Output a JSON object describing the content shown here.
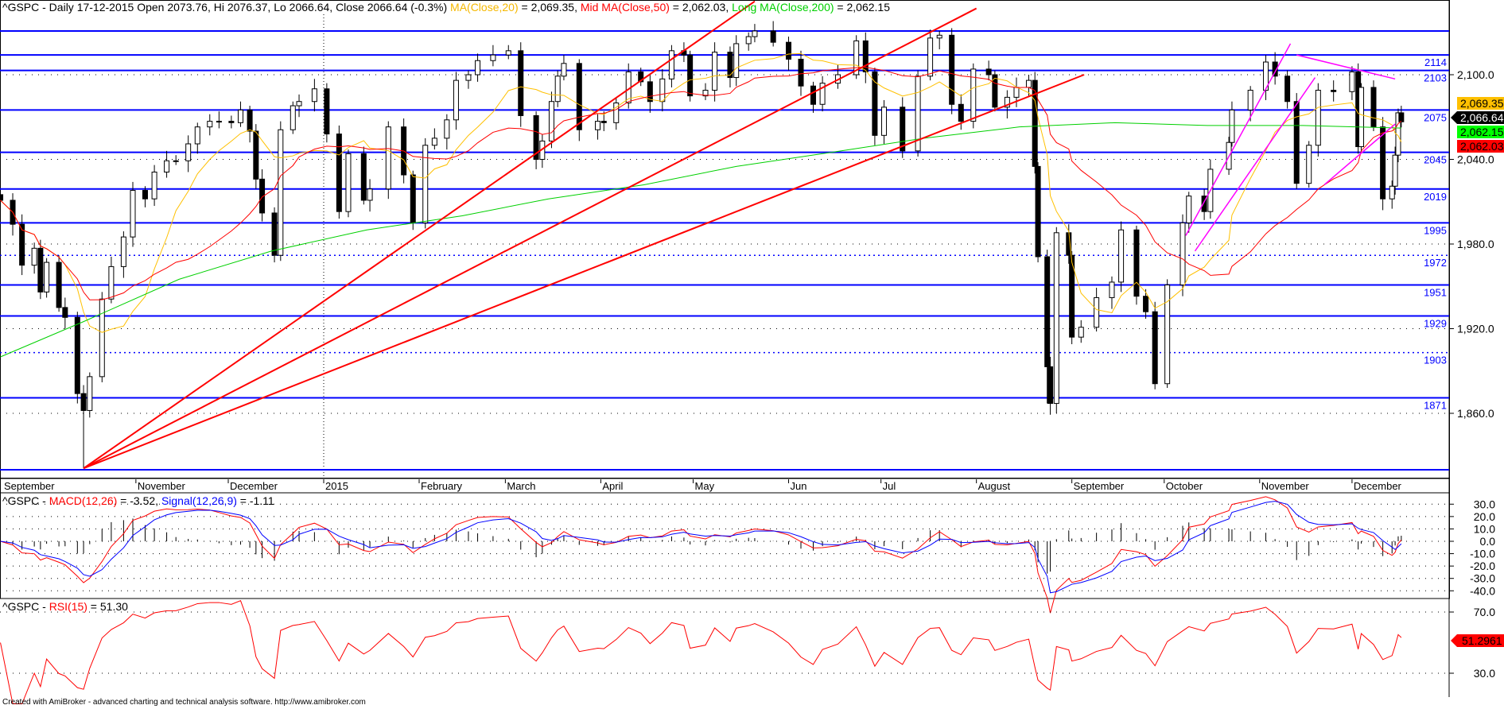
{
  "header": {
    "symbol_info": "^GSPC - Daily 17-12-2015 Open 2073.76, Hi 2076.37, Lo 2066.64, Close 2066.64 (-0.3%)",
    "ma20_label": "MA(Close,20)",
    "ma20_value": " = 2,069.35,",
    "ma50_label": "Mid MA(Close,50)",
    "ma50_value": " = 2,062.03,",
    "ma200_label": "Long MA(Close,200)",
    "ma200_value": " = 2,062.15"
  },
  "macd_header": {
    "prefix": "^GSPC - ",
    "macd_label": "MACD(12,26)",
    "macd_value": " = -3.52, ",
    "signal_label": "Signal(12,26,9)",
    "signal_value": " = -1.11"
  },
  "rsi_header": {
    "prefix": "^GSPC - ",
    "rsi_label": "RSI(15)",
    "rsi_value": " = 51.30"
  },
  "footer": "Created with AmiBroker - advanced charting and technical analysis software. http://www.amibroker.com",
  "chart_data": [
    {
      "type": "candlestick",
      "title": "^GSPC - Daily",
      "x_range": [
        "2014-09-18",
        "2015-12-17"
      ],
      "ylim": [
        1815,
        2160
      ],
      "y_ticks": [
        "2,100.0",
        "2,040.0",
        "1,980.0",
        "1,920.0",
        "1,860.0"
      ],
      "y_tick_values": [
        2100,
        2040,
        1980,
        1920,
        1860
      ],
      "month_labels": [
        {
          "d": "2014-09-01",
          "t": "September"
        },
        {
          "d": "2014-11-01",
          "t": "November"
        },
        {
          "d": "2014-12-01",
          "t": "December"
        },
        {
          "d": "2015-01-01",
          "t": "2015"
        },
        {
          "d": "2015-02-01",
          "t": "February"
        },
        {
          "d": "2015-03-01",
          "t": "March"
        },
        {
          "d": "2015-04-01",
          "t": "April"
        },
        {
          "d": "2015-05-01",
          "t": "May"
        },
        {
          "d": "2015-06-01",
          "t": "Jun"
        },
        {
          "d": "2015-07-01",
          "t": "Jul"
        },
        {
          "d": "2015-08-01",
          "t": "August"
        },
        {
          "d": "2015-09-01",
          "t": "September"
        },
        {
          "d": "2015-10-01",
          "t": "October"
        },
        {
          "d": "2015-11-01",
          "t": "November"
        },
        {
          "d": "2015-12-01",
          "t": "December"
        }
      ],
      "closes": [
        {
          "d": "2014-09-18",
          "c": 2011
        },
        {
          "d": "2014-09-22",
          "c": 1994
        },
        {
          "d": "2014-09-25",
          "c": 1965
        },
        {
          "d": "2014-09-29",
          "c": 1977
        },
        {
          "d": "2014-10-01",
          "c": 1946
        },
        {
          "d": "2014-10-03",
          "c": 1967
        },
        {
          "d": "2014-10-07",
          "c": 1935
        },
        {
          "d": "2014-10-09",
          "c": 1928
        },
        {
          "d": "2014-10-13",
          "c": 1874
        },
        {
          "d": "2014-10-15",
          "c": 1862,
          "l": 1821
        },
        {
          "d": "2014-10-17",
          "c": 1886
        },
        {
          "d": "2014-10-21",
          "c": 1941
        },
        {
          "d": "2014-10-24",
          "c": 1964
        },
        {
          "d": "2014-10-28",
          "c": 1985
        },
        {
          "d": "2014-10-31",
          "c": 2018
        },
        {
          "d": "2014-11-04",
          "c": 2012
        },
        {
          "d": "2014-11-07",
          "c": 2031
        },
        {
          "d": "2014-11-11",
          "c": 2039
        },
        {
          "d": "2014-11-14",
          "c": 2039
        },
        {
          "d": "2014-11-18",
          "c": 2051
        },
        {
          "d": "2014-11-21",
          "c": 2063
        },
        {
          "d": "2014-11-25",
          "c": 2067
        },
        {
          "d": "2014-11-28",
          "c": 2067
        },
        {
          "d": "2014-12-02",
          "c": 2066
        },
        {
          "d": "2014-12-05",
          "c": 2075
        },
        {
          "d": "2014-12-08",
          "c": 2060
        },
        {
          "d": "2014-12-10",
          "c": 2026
        },
        {
          "d": "2014-12-12",
          "c": 2002
        },
        {
          "d": "2014-12-16",
          "c": 1972
        },
        {
          "d": "2014-12-18",
          "c": 2061
        },
        {
          "d": "2014-12-22",
          "c": 2078
        },
        {
          "d": "2014-12-24",
          "c": 2081
        },
        {
          "d": "2014-12-29",
          "c": 2090
        },
        {
          "d": "2015-01-02",
          "c": 2058
        },
        {
          "d": "2015-01-06",
          "c": 2003
        },
        {
          "d": "2015-01-09",
          "c": 2044
        },
        {
          "d": "2015-01-14",
          "c": 2011
        },
        {
          "d": "2015-01-16",
          "c": 2019
        },
        {
          "d": "2015-01-22",
          "c": 2063
        },
        {
          "d": "2015-01-27",
          "c": 2029
        },
        {
          "d": "2015-01-30",
          "c": 1995
        },
        {
          "d": "2015-02-03",
          "c": 2050
        },
        {
          "d": "2015-02-06",
          "c": 2055
        },
        {
          "d": "2015-02-10",
          "c": 2068
        },
        {
          "d": "2015-02-13",
          "c": 2096
        },
        {
          "d": "2015-02-17",
          "c": 2100
        },
        {
          "d": "2015-02-20",
          "c": 2110
        },
        {
          "d": "2015-02-25",
          "c": 2114
        },
        {
          "d": "2015-03-02",
          "c": 2117
        },
        {
          "d": "2015-03-06",
          "c": 2071
        },
        {
          "d": "2015-03-11",
          "c": 2040
        },
        {
          "d": "2015-03-13",
          "c": 2053
        },
        {
          "d": "2015-03-16",
          "c": 2081
        },
        {
          "d": "2015-03-18",
          "c": 2099
        },
        {
          "d": "2015-03-20",
          "c": 2108
        },
        {
          "d": "2015-03-25",
          "c": 2061
        },
        {
          "d": "2015-03-31",
          "c": 2067
        },
        {
          "d": "2015-04-02",
          "c": 2066
        },
        {
          "d": "2015-04-06",
          "c": 2080
        },
        {
          "d": "2015-04-10",
          "c": 2102
        },
        {
          "d": "2015-04-14",
          "c": 2095
        },
        {
          "d": "2015-04-17",
          "c": 2081
        },
        {
          "d": "2015-04-21",
          "c": 2097
        },
        {
          "d": "2015-04-24",
          "c": 2117
        },
        {
          "d": "2015-04-28",
          "c": 2114
        },
        {
          "d": "2015-04-30",
          "c": 2085
        },
        {
          "d": "2015-05-05",
          "c": 2089
        },
        {
          "d": "2015-05-08",
          "c": 2116
        },
        {
          "d": "2015-05-13",
          "c": 2098
        },
        {
          "d": "2015-05-15",
          "c": 2122
        },
        {
          "d": "2015-05-19",
          "c": 2127
        },
        {
          "d": "2015-05-21",
          "c": 2131
        },
        {
          "d": "2015-05-27",
          "c": 2123
        },
        {
          "d": "2015-06-01",
          "c": 2111
        },
        {
          "d": "2015-06-05",
          "c": 2092
        },
        {
          "d": "2015-06-09",
          "c": 2079
        },
        {
          "d": "2015-06-12",
          "c": 2094
        },
        {
          "d": "2015-06-17",
          "c": 2100
        },
        {
          "d": "2015-06-23",
          "c": 2124
        },
        {
          "d": "2015-06-26",
          "c": 2102
        },
        {
          "d": "2015-06-29",
          "c": 2057
        },
        {
          "d": "2015-07-02",
          "c": 2077
        },
        {
          "d": "2015-07-08",
          "c": 2046
        },
        {
          "d": "2015-07-13",
          "c": 2099
        },
        {
          "d": "2015-07-17",
          "c": 2126
        },
        {
          "d": "2015-07-20",
          "c": 2128
        },
        {
          "d": "2015-07-24",
          "c": 2079
        },
        {
          "d": "2015-07-27",
          "c": 2067
        },
        {
          "d": "2015-07-31",
          "c": 2104
        },
        {
          "d": "2015-08-05",
          "c": 2100
        },
        {
          "d": "2015-08-07",
          "c": 2077
        },
        {
          "d": "2015-08-11",
          "c": 2084
        },
        {
          "d": "2015-08-14",
          "c": 2091
        },
        {
          "d": "2015-08-18",
          "c": 2096
        },
        {
          "d": "2015-08-20",
          "c": 2035
        },
        {
          "d": "2015-08-21",
          "c": 1971
        },
        {
          "d": "2015-08-24",
          "c": 1893,
          "l": 1867
        },
        {
          "d": "2015-08-25",
          "c": 1867
        },
        {
          "d": "2015-08-27",
          "c": 1988
        },
        {
          "d": "2015-08-31",
          "c": 1972
        },
        {
          "d": "2015-09-01",
          "c": 1914
        },
        {
          "d": "2015-09-04",
          "c": 1921
        },
        {
          "d": "2015-09-09",
          "c": 1942
        },
        {
          "d": "2015-09-14",
          "c": 1953
        },
        {
          "d": "2015-09-17",
          "c": 1990
        },
        {
          "d": "2015-09-22",
          "c": 1943
        },
        {
          "d": "2015-09-25",
          "c": 1932
        },
        {
          "d": "2015-09-28",
          "c": 1881
        },
        {
          "d": "2015-10-02",
          "c": 1951
        },
        {
          "d": "2015-10-07",
          "c": 1995
        },
        {
          "d": "2015-10-09",
          "c": 2014
        },
        {
          "d": "2015-10-14",
          "c": 2003
        },
        {
          "d": "2015-10-16",
          "c": 2033
        },
        {
          "d": "2015-10-22",
          "c": 2052
        },
        {
          "d": "2015-10-23",
          "c": 2075
        },
        {
          "d": "2015-10-29",
          "c": 2089
        },
        {
          "d": "2015-11-03",
          "c": 2109
        },
        {
          "d": "2015-11-06",
          "c": 2099
        },
        {
          "d": "2015-11-10",
          "c": 2081
        },
        {
          "d": "2015-11-13",
          "c": 2023
        },
        {
          "d": "2015-11-17",
          "c": 2050
        },
        {
          "d": "2015-11-20",
          "c": 2089
        },
        {
          "d": "2015-11-25",
          "c": 2088
        },
        {
          "d": "2015-12-01",
          "c": 2102
        },
        {
          "d": "2015-12-03",
          "c": 2049
        },
        {
          "d": "2015-12-04",
          "c": 2091
        },
        {
          "d": "2015-12-08",
          "c": 2063
        },
        {
          "d": "2015-12-11",
          "c": 2012
        },
        {
          "d": "2015-12-14",
          "c": 2021
        },
        {
          "d": "2015-12-15",
          "c": 2043
        },
        {
          "d": "2015-12-16",
          "c": 2073
        },
        {
          "d": "2015-12-17",
          "c": 2066.64
        }
      ],
      "long_ma200": [
        {
          "d": "2014-09-18",
          "v": 1900
        },
        {
          "d": "2014-10-15",
          "v": 1925
        },
        {
          "d": "2014-11-15",
          "v": 1955
        },
        {
          "d": "2014-12-15",
          "v": 1975
        },
        {
          "d": "2015-01-15",
          "v": 1990
        },
        {
          "d": "2015-02-15",
          "v": 2000
        },
        {
          "d": "2015-03-15",
          "v": 2012
        },
        {
          "d": "2015-04-15",
          "v": 2022
        },
        {
          "d": "2015-05-15",
          "v": 2035
        },
        {
          "d": "2015-06-15",
          "v": 2045
        },
        {
          "d": "2015-07-15",
          "v": 2055
        },
        {
          "d": "2015-08-15",
          "v": 2063
        },
        {
          "d": "2015-09-15",
          "v": 2066
        },
        {
          "d": "2015-10-15",
          "v": 2064
        },
        {
          "d": "2015-11-15",
          "v": 2064
        },
        {
          "d": "2015-12-17",
          "v": 2062.15
        }
      ],
      "levels": [
        {
          "v": 2131,
          "label": "",
          "style": "solid"
        },
        {
          "v": 2114,
          "label": "2114",
          "style": "solid"
        },
        {
          "v": 2103,
          "label": "2103",
          "style": "solid"
        },
        {
          "v": 2075,
          "label": "2075",
          "style": "solid"
        },
        {
          "v": 2045,
          "label": "2045",
          "style": "solid"
        },
        {
          "v": 2019,
          "label": "2019",
          "style": "solid"
        },
        {
          "v": 1995,
          "label": "1995",
          "style": "solid"
        },
        {
          "v": 1972,
          "label": "1972",
          "style": "dotted"
        },
        {
          "v": 1951,
          "label": "1951",
          "style": "solid"
        },
        {
          "v": 1929,
          "label": "1929",
          "style": "solid"
        },
        {
          "v": 1903,
          "label": "1903",
          "style": "dotted"
        },
        {
          "v": 1871,
          "label": "1871",
          "style": "solid"
        },
        {
          "v": 1820,
          "label": "",
          "style": "solid"
        }
      ],
      "trendlines_red": [
        [
          {
            "d": "2014-10-15",
            "v": 1821
          },
          {
            "d": "2015-05-21",
            "v": 2152
          }
        ],
        [
          {
            "d": "2014-10-15",
            "v": 1821
          },
          {
            "d": "2015-08-01",
            "v": 2147
          }
        ],
        [
          {
            "d": "2014-10-15",
            "v": 1821
          },
          {
            "d": "2015-09-05",
            "v": 2100
          }
        ]
      ],
      "trendlines_magenta": [
        [
          {
            "d": "2015-10-08",
            "v": 1986
          },
          {
            "d": "2015-11-11",
            "v": 2122
          }
        ],
        [
          {
            "d": "2015-10-11",
            "v": 1975
          },
          {
            "d": "2015-11-19",
            "v": 2098
          }
        ],
        [
          {
            "d": "2015-11-13",
            "v": 2114
          },
          {
            "d": "2015-12-15",
            "v": 2097
          }
        ],
        [
          {
            "d": "2015-11-22",
            "v": 2022
          },
          {
            "d": "2015-12-15",
            "v": 2065
          }
        ]
      ],
      "value_tags": [
        {
          "t": "2,069.35",
          "bg": "#ffc000",
          "fg": "#000"
        },
        {
          "t": "2,066.64",
          "bg": "#000000",
          "fg": "#fff"
        },
        {
          "t": "2,062.15",
          "bg": "#00ff00",
          "fg": "#000"
        },
        {
          "t": "2,062.03",
          "bg": "#ff0000",
          "fg": "#000"
        }
      ],
      "tag_values": [
        2069.35,
        2066.64,
        2062.15,
        2062.03
      ],
      "colors": {
        "ma20": "#ffc000",
        "ma50": "#ff0000",
        "ma200": "#00d000",
        "levels": "#0000ff",
        "trend": "#ff0000",
        "channel": "#ff00ff"
      }
    },
    {
      "type": "line",
      "title": "MACD(12,26) / Signal(12,26,9)",
      "ylim": [
        -45,
        35
      ],
      "y_ticks": [
        "30.0",
        "20.0",
        "10.0",
        "0.0",
        "-10.0",
        "-20.0",
        "-30.0",
        "-40.0"
      ],
      "y_tick_values": [
        30,
        20,
        10,
        0,
        -10,
        -20,
        -30,
        -40
      ],
      "last_macd": -3.52,
      "last_signal": -1.11,
      "colors": {
        "macd": "#ff0000",
        "signal": "#0000ff",
        "histogram": "#000000"
      }
    },
    {
      "type": "line",
      "title": "RSI(15)",
      "y_ticks": [
        "70.0",
        "30.0"
      ],
      "y_tick_values": [
        70,
        30
      ],
      "last_value_tag": "51.2961",
      "last_value": 51.2961,
      "colors": {
        "rsi": "#ff0000"
      }
    }
  ]
}
